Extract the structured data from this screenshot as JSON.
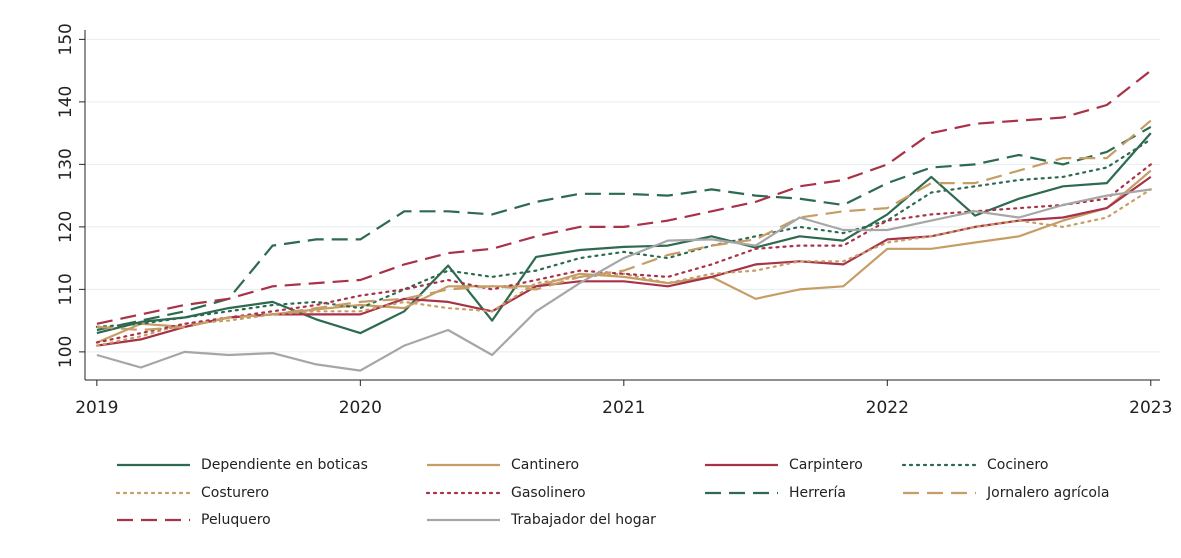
{
  "chart_data": {
    "type": "line",
    "x": [
      2019,
      2019.167,
      2019.333,
      2019.5,
      2019.667,
      2019.833,
      2020,
      2020.167,
      2020.333,
      2020.5,
      2020.667,
      2020.833,
      2021,
      2021.167,
      2021.333,
      2021.5,
      2021.667,
      2021.833,
      2022,
      2022.167,
      2022.333,
      2022.5,
      2022.667,
      2022.833,
      2023
    ],
    "xlim": [
      2018.955,
      2023.035
    ],
    "xticks": [
      2019,
      2020,
      2021,
      2022,
      2023
    ],
    "ylim": [
      95.5,
      151.5
    ],
    "yticks": [
      100,
      110,
      120,
      130,
      140,
      150
    ],
    "grid": true,
    "legend": "bottom",
    "series": [
      {
        "name": "Dependiente en boticas",
        "color": "#2d6a4f",
        "dash": "solid",
        "values": [
          103,
          104.8,
          105.5,
          107,
          108,
          105.2,
          103,
          106.5,
          113.8,
          105,
          115.2,
          116.3,
          116.8,
          117,
          118.5,
          116.7,
          118.5,
          117.8,
          122,
          128,
          121.8,
          124.5,
          126.5,
          127,
          135
        ]
      },
      {
        "name": "Cantinero",
        "color": "#c79d66",
        "dash": "solid",
        "values": [
          101.5,
          104.5,
          104,
          105.5,
          106,
          106.8,
          107.5,
          107,
          110.5,
          110.5,
          110.5,
          112.5,
          112,
          111,
          112,
          108.5,
          110,
          110.5,
          116.5,
          116.5,
          117.5,
          118.5,
          121,
          123,
          129
        ]
      },
      {
        "name": "Carpintero",
        "color": "#a83248",
        "dash": "solid",
        "values": [
          101,
          102,
          104,
          105.5,
          106,
          106,
          106,
          108.5,
          108,
          106.5,
          110.5,
          111.3,
          111.3,
          110.5,
          112,
          114,
          114.5,
          114,
          118,
          118.5,
          120,
          121,
          121.5,
          123,
          128
        ]
      },
      {
        "name": "Cocinero",
        "color": "#2d6a4f",
        "dash": "dot",
        "values": [
          104,
          104.5,
          105.5,
          106.5,
          107.5,
          108,
          107,
          110,
          113,
          112,
          113,
          115,
          116,
          115,
          117,
          118.5,
          120,
          119,
          121,
          125.5,
          126.5,
          127.5,
          128,
          129.5,
          134
        ]
      },
      {
        "name": "Costurero",
        "color": "#c79d66",
        "dash": "dot",
        "values": [
          101,
          102.5,
          104.5,
          105,
          106,
          106.5,
          106.5,
          108,
          107,
          106.5,
          111,
          112,
          112.5,
          111,
          112.5,
          113,
          114.5,
          114.5,
          117.5,
          118.5,
          120,
          121,
          120,
          121.5,
          126
        ]
      },
      {
        "name": "Gasolinero",
        "color": "#a83248",
        "dash": "dot",
        "values": [
          101.5,
          103,
          104.5,
          105.5,
          106.5,
          107.5,
          109,
          110,
          111.5,
          110,
          111.5,
          113,
          112.5,
          112,
          114,
          116.5,
          117,
          117,
          121,
          122,
          122.5,
          123,
          123.5,
          124.5,
          130
        ]
      },
      {
        "name": "Herrería",
        "color": "#2d6a4f",
        "dash": "dash",
        "values": [
          103.5,
          105,
          106.5,
          108.5,
          117,
          118,
          118,
          122.5,
          122.5,
          122,
          124,
          125.3,
          125.3,
          125,
          126,
          125,
          124.5,
          123.5,
          127,
          129.5,
          130,
          131.5,
          130,
          132,
          136
        ]
      },
      {
        "name": "Jornalero agrícola",
        "color": "#c79d66",
        "dash": "dash",
        "values": [
          104,
          103.5,
          104,
          105.5,
          106,
          107,
          108,
          108.5,
          110,
          110.5,
          110,
          112,
          113,
          115.5,
          117,
          118,
          121.5,
          122.5,
          123,
          127,
          127,
          129,
          131,
          131,
          137
        ]
      },
      {
        "name": "Peluquero",
        "color": "#a83248",
        "dash": "dash",
        "values": [
          104.5,
          106,
          107.5,
          108.5,
          110.5,
          111,
          111.5,
          114,
          115.8,
          116.5,
          118.5,
          120,
          120,
          121,
          122.5,
          124,
          126.5,
          127.5,
          130,
          135,
          136.5,
          137,
          137.5,
          139.5,
          145
        ]
      },
      {
        "name": "Trabajador del hogar",
        "color": "#a6a6a6",
        "dash": "solid",
        "values": [
          99.5,
          97.5,
          100,
          99.5,
          99.8,
          98,
          97,
          101,
          103.5,
          99.5,
          106.5,
          111,
          115,
          117.8,
          118,
          117,
          121.5,
          119.5,
          119.5,
          121,
          122.5,
          121.5,
          123.5,
          125,
          126
        ]
      }
    ]
  }
}
